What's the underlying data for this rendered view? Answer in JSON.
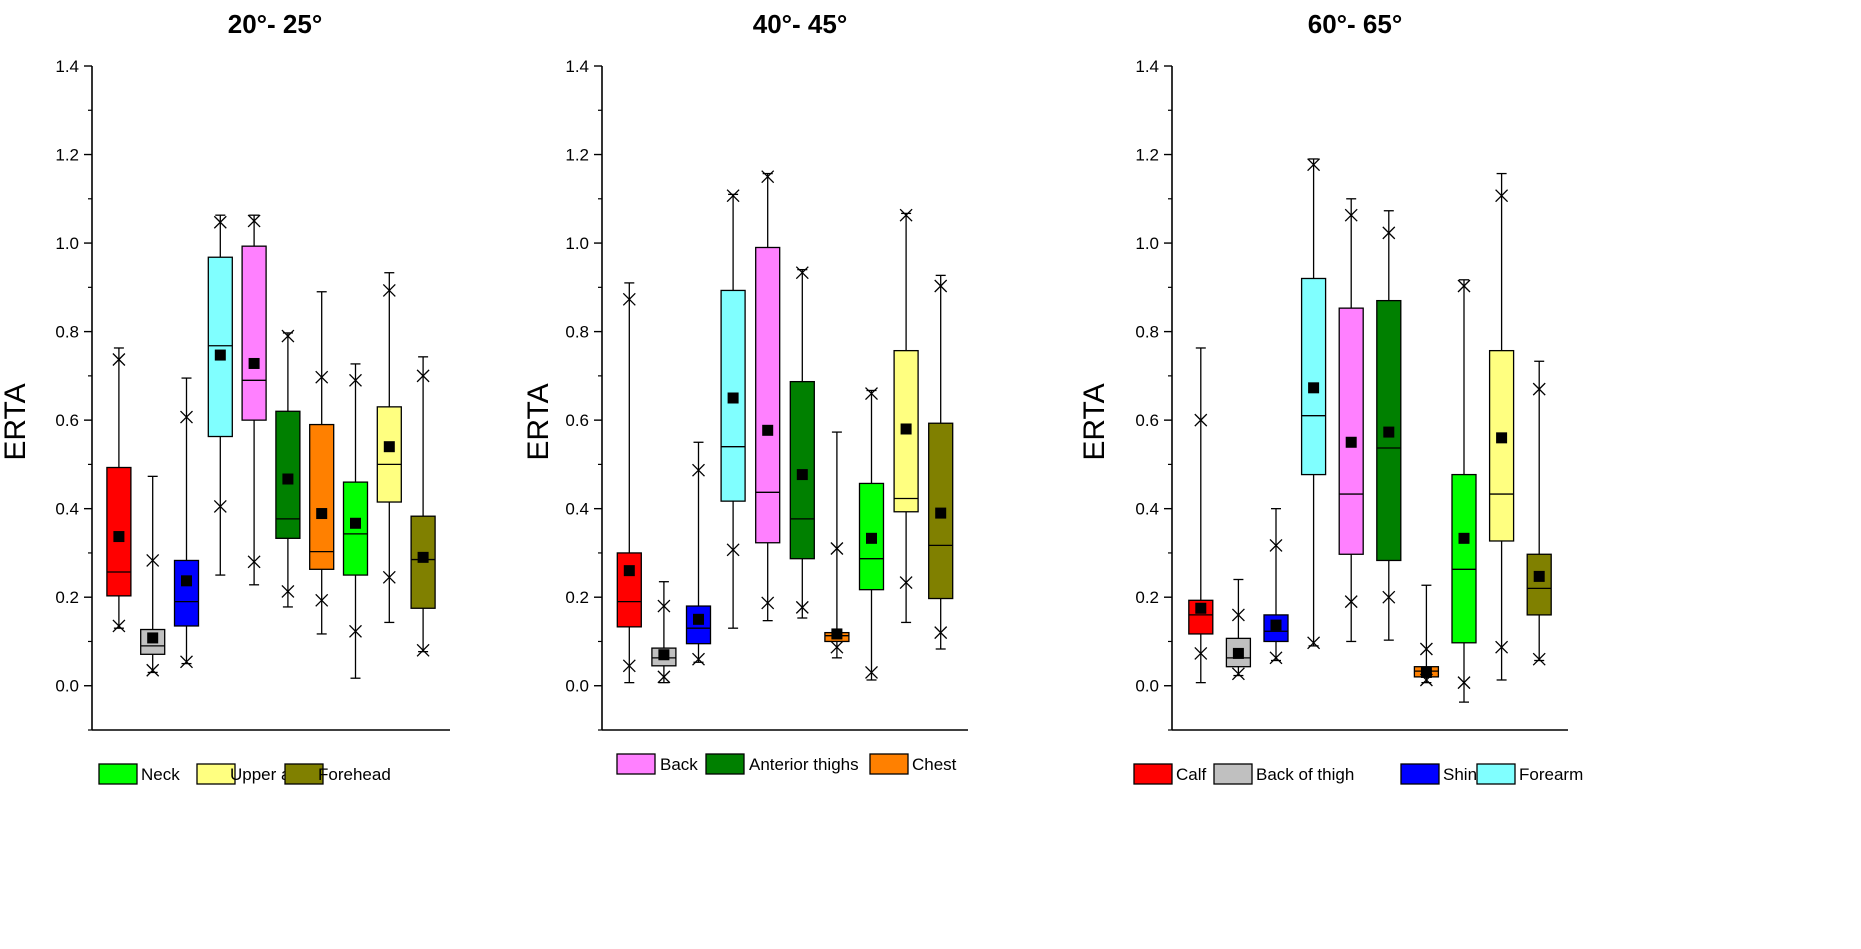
{
  "chart_data": [
    {
      "type": "boxplot",
      "title": "20°- 25°",
      "ylabel": "ERTA",
      "xlabel": "",
      "ylim": [
        -0.1,
        1.4
      ],
      "yticks": [
        "0.0",
        "0.2",
        "0.4",
        "0.6",
        "0.8",
        "1.0",
        "1.2",
        "1.4"
      ],
      "legend": [
        "Neck",
        "Upper arm",
        "Forehead"
      ],
      "boxes": [
        {
          "name": "Calf",
          "color": "#ff0000",
          "whisker_low": 0.13,
          "outlier_low": 0.135,
          "q1": 0.203,
          "median": 0.257,
          "mean": 0.337,
          "q3": 0.493,
          "outlier_high": 0.737,
          "whisker_high": 0.763
        },
        {
          "name": "Back of thigh",
          "color": "#c0c0c0",
          "whisker_low": 0.03,
          "outlier_low": 0.035,
          "q1": 0.071,
          "median": 0.09,
          "mean": 0.108,
          "q3": 0.127,
          "outlier_high": 0.283,
          "whisker_high": 0.473
        },
        {
          "name": "Shin",
          "color": "#0000ff",
          "whisker_low": 0.05,
          "outlier_low": 0.054,
          "q1": 0.135,
          "median": 0.19,
          "mean": 0.237,
          "q3": 0.283,
          "outlier_high": 0.607,
          "whisker_high": 0.695
        },
        {
          "name": "Forearm",
          "color": "#80ffff",
          "whisker_low": 0.25,
          "outlier_low": 0.405,
          "q1": 0.563,
          "median": 0.768,
          "mean": 0.747,
          "q3": 0.968,
          "outlier_high": 1.047,
          "whisker_high": 1.063
        },
        {
          "name": "Back",
          "color": "#ff80ff",
          "whisker_low": 0.228,
          "outlier_low": 0.28,
          "q1": 0.6,
          "median": 0.69,
          "mean": 0.728,
          "q3": 0.993,
          "outlier_high": 1.05,
          "whisker_high": 1.063
        },
        {
          "name": "Anterior thighs",
          "color": "#008000",
          "whisker_low": 0.178,
          "outlier_low": 0.213,
          "q1": 0.333,
          "median": 0.377,
          "mean": 0.467,
          "q3": 0.62,
          "outlier_high": 0.79,
          "whisker_high": 0.797
        },
        {
          "name": "Chest",
          "color": "#ff8000",
          "whisker_low": 0.117,
          "outlier_low": 0.193,
          "q1": 0.263,
          "median": 0.303,
          "mean": 0.389,
          "q3": 0.59,
          "outlier_high": 0.697,
          "whisker_high": 0.89
        },
        {
          "name": "Neck",
          "color": "#00ff00",
          "whisker_low": 0.017,
          "outlier_low": 0.123,
          "q1": 0.25,
          "median": 0.343,
          "mean": 0.367,
          "q3": 0.46,
          "outlier_high": 0.69,
          "whisker_high": 0.727
        },
        {
          "name": "Upper arm",
          "color": "#ffff80",
          "whisker_low": 0.143,
          "outlier_low": 0.245,
          "q1": 0.415,
          "median": 0.5,
          "mean": 0.54,
          "q3": 0.63,
          "outlier_high": 0.893,
          "whisker_high": 0.933
        },
        {
          "name": "Forehead",
          "color": "#808000",
          "whisker_low": 0.077,
          "outlier_low": 0.08,
          "q1": 0.175,
          "median": 0.285,
          "mean": 0.29,
          "q3": 0.383,
          "outlier_high": 0.7,
          "whisker_high": 0.743
        }
      ]
    },
    {
      "type": "boxplot",
      "title": "40°- 45°",
      "ylabel": "ERTA",
      "xlabel": "",
      "ylim": [
        -0.1,
        1.4
      ],
      "yticks": [
        "0.0",
        "0.2",
        "0.4",
        "0.6",
        "0.8",
        "1.0",
        "1.2",
        "1.4"
      ],
      "legend": [
        "Back",
        "Anterior thighs",
        "Chest"
      ],
      "boxes": [
        {
          "name": "Calf",
          "color": "#ff0000",
          "whisker_low": 0.007,
          "outlier_low": 0.045,
          "q1": 0.133,
          "median": 0.19,
          "mean": 0.26,
          "q3": 0.3,
          "outlier_high": 0.873,
          "whisker_high": 0.91
        },
        {
          "name": "Back of thigh",
          "color": "#c0c0c0",
          "whisker_low": 0.007,
          "outlier_low": 0.02,
          "q1": 0.045,
          "median": 0.063,
          "mean": 0.07,
          "q3": 0.085,
          "outlier_high": 0.18,
          "whisker_high": 0.235
        },
        {
          "name": "Shin",
          "color": "#0000ff",
          "whisker_low": 0.053,
          "outlier_low": 0.06,
          "q1": 0.095,
          "median": 0.13,
          "mean": 0.15,
          "q3": 0.18,
          "outlier_high": 0.487,
          "whisker_high": 0.55
        },
        {
          "name": "Forearm",
          "color": "#80ffff",
          "whisker_low": 0.13,
          "outlier_low": 0.307,
          "q1": 0.417,
          "median": 0.54,
          "mean": 0.65,
          "q3": 0.893,
          "outlier_high": 1.107,
          "whisker_high": 1.11
        },
        {
          "name": "Back",
          "color": "#ff80ff",
          "whisker_low": 0.147,
          "outlier_low": 0.187,
          "q1": 0.323,
          "median": 0.437,
          "mean": 0.577,
          "q3": 0.99,
          "outlier_high": 1.15,
          "whisker_high": 1.157
        },
        {
          "name": "Anterior thighs",
          "color": "#008000",
          "whisker_low": 0.153,
          "outlier_low": 0.177,
          "q1": 0.287,
          "median": 0.377,
          "mean": 0.477,
          "q3": 0.687,
          "outlier_high": 0.933,
          "whisker_high": 0.94
        },
        {
          "name": "Chest",
          "color": "#ff8000",
          "whisker_low": 0.063,
          "outlier_low": 0.087,
          "q1": 0.1,
          "median": 0.113,
          "mean": 0.117,
          "q3": 0.12,
          "outlier_high": 0.31,
          "whisker_high": 0.573
        },
        {
          "name": "Neck",
          "color": "#00ff00",
          "whisker_low": 0.013,
          "outlier_low": 0.03,
          "q1": 0.217,
          "median": 0.287,
          "mean": 0.333,
          "q3": 0.457,
          "outlier_high": 0.66,
          "whisker_high": 0.667
        },
        {
          "name": "Upper arm",
          "color": "#ffff80",
          "whisker_low": 0.143,
          "outlier_low": 0.233,
          "q1": 0.393,
          "median": 0.423,
          "mean": 0.58,
          "q3": 0.757,
          "outlier_high": 1.063,
          "whisker_high": 1.067
        },
        {
          "name": "Forehead",
          "color": "#808000",
          "whisker_low": 0.083,
          "outlier_low": 0.12,
          "q1": 0.197,
          "median": 0.317,
          "mean": 0.39,
          "q3": 0.593,
          "outlier_high": 0.903,
          "whisker_high": 0.927
        }
      ]
    },
    {
      "type": "boxplot",
      "title": "60°- 65°",
      "ylabel": "ERTA",
      "xlabel": "",
      "ylim": [
        -0.1,
        1.4
      ],
      "yticks": [
        "0.0",
        "0.2",
        "0.4",
        "0.6",
        "0.8",
        "1.0",
        "1.2",
        "1.4"
      ],
      "legend": [
        "Calf",
        "Back of thigh",
        "Shin",
        "Forearm"
      ],
      "boxes": [
        {
          "name": "Calf",
          "color": "#ff0000",
          "whisker_low": 0.007,
          "outlier_low": 0.073,
          "q1": 0.117,
          "median": 0.16,
          "mean": 0.175,
          "q3": 0.193,
          "outlier_high": 0.6,
          "whisker_high": 0.763
        },
        {
          "name": "Back of thigh",
          "color": "#c0c0c0",
          "whisker_low": 0.023,
          "outlier_low": 0.027,
          "q1": 0.043,
          "median": 0.063,
          "mean": 0.073,
          "q3": 0.107,
          "outlier_high": 0.16,
          "whisker_high": 0.24
        },
        {
          "name": "Shin",
          "color": "#0000ff",
          "whisker_low": 0.057,
          "outlier_low": 0.063,
          "q1": 0.1,
          "median": 0.123,
          "mean": 0.137,
          "q3": 0.16,
          "outlier_high": 0.317,
          "whisker_high": 0.4
        },
        {
          "name": "Forearm",
          "color": "#80ffff",
          "whisker_low": 0.09,
          "outlier_low": 0.097,
          "q1": 0.477,
          "median": 0.61,
          "mean": 0.673,
          "q3": 0.92,
          "outlier_high": 1.177,
          "whisker_high": 1.19
        },
        {
          "name": "Back",
          "color": "#ff80ff",
          "whisker_low": 0.1,
          "outlier_low": 0.19,
          "q1": 0.297,
          "median": 0.433,
          "mean": 0.55,
          "q3": 0.853,
          "outlier_high": 1.063,
          "whisker_high": 1.1
        },
        {
          "name": "Anterior thighs",
          "color": "#008000",
          "whisker_low": 0.103,
          "outlier_low": 0.2,
          "q1": 0.283,
          "median": 0.537,
          "mean": 0.573,
          "q3": 0.87,
          "outlier_high": 1.023,
          "whisker_high": 1.073
        },
        {
          "name": "Chest",
          "color": "#ff8000",
          "whisker_low": 0.007,
          "outlier_low": 0.013,
          "q1": 0.02,
          "median": 0.033,
          "mean": 0.03,
          "q3": 0.043,
          "outlier_high": 0.083,
          "whisker_high": 0.227
        },
        {
          "name": "Neck",
          "color": "#00ff00",
          "whisker_low": -0.037,
          "outlier_low": 0.007,
          "q1": 0.097,
          "median": 0.263,
          "mean": 0.333,
          "q3": 0.477,
          "outlier_high": 0.903,
          "whisker_high": 0.917
        },
        {
          "name": "Upper arm",
          "color": "#ffff80",
          "whisker_low": 0.013,
          "outlier_low": 0.087,
          "q1": 0.327,
          "median": 0.433,
          "mean": 0.56,
          "q3": 0.757,
          "outlier_high": 1.107,
          "whisker_high": 1.157
        },
        {
          "name": "Forehead",
          "color": "#808000",
          "whisker_low": 0.057,
          "outlier_low": 0.06,
          "q1": 0.16,
          "median": 0.22,
          "mean": 0.247,
          "q3": 0.297,
          "outlier_high": 0.67,
          "whisker_high": 0.733
        }
      ]
    }
  ]
}
